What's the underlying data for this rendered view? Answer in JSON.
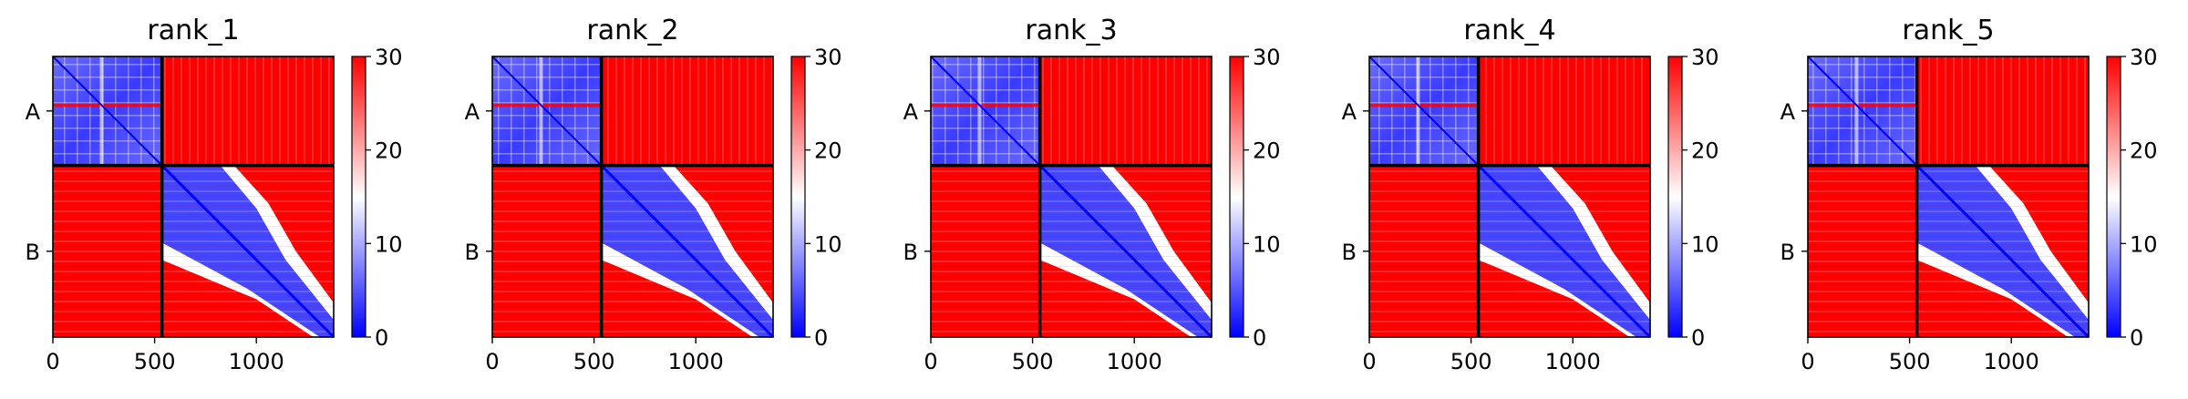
{
  "colors": {
    "low": "#0000ff",
    "mid": "#ffffff",
    "high": "#ff0000",
    "chain_boundary": "#000000"
  },
  "chart_data": [
    {
      "type": "heatmap",
      "title": "rank_1",
      "chains": [
        "A",
        "B"
      ],
      "chain_boundary": 536,
      "xlim": [
        0,
        1380
      ],
      "xticks": [
        0,
        500,
        1000
      ],
      "colorbar": {
        "ticks": [
          0,
          10,
          20,
          30
        ],
        "range": [
          0,
          30
        ],
        "colormap": "bwr"
      }
    },
    {
      "type": "heatmap",
      "title": "rank_2",
      "chains": [
        "A",
        "B"
      ],
      "chain_boundary": 536,
      "xlim": [
        0,
        1380
      ],
      "xticks": [
        0,
        500,
        1000
      ],
      "colorbar": {
        "ticks": [
          0,
          10,
          20,
          30
        ],
        "range": [
          0,
          30
        ],
        "colormap": "bwr"
      }
    },
    {
      "type": "heatmap",
      "title": "rank_3",
      "chains": [
        "A",
        "B"
      ],
      "chain_boundary": 536,
      "xlim": [
        0,
        1380
      ],
      "xticks": [
        0,
        500,
        1000
      ],
      "colorbar": {
        "ticks": [
          0,
          10,
          20,
          30
        ],
        "range": [
          0,
          30
        ],
        "colormap": "bwr"
      }
    },
    {
      "type": "heatmap",
      "title": "rank_4",
      "chains": [
        "A",
        "B"
      ],
      "chain_boundary": 536,
      "xlim": [
        0,
        1380
      ],
      "xticks": [
        0,
        500,
        1000
      ],
      "colorbar": {
        "ticks": [
          0,
          10,
          20,
          30
        ],
        "range": [
          0,
          30
        ],
        "colormap": "bwr"
      }
    },
    {
      "type": "heatmap",
      "title": "rank_5",
      "chains": [
        "A",
        "B"
      ],
      "chain_boundary": 536,
      "xlim": [
        0,
        1380
      ],
      "xticks": [
        0,
        500,
        1000
      ],
      "colorbar": {
        "ticks": [
          0,
          10,
          20,
          30
        ],
        "range": [
          0,
          30
        ],
        "colormap": "bwr"
      }
    }
  ]
}
